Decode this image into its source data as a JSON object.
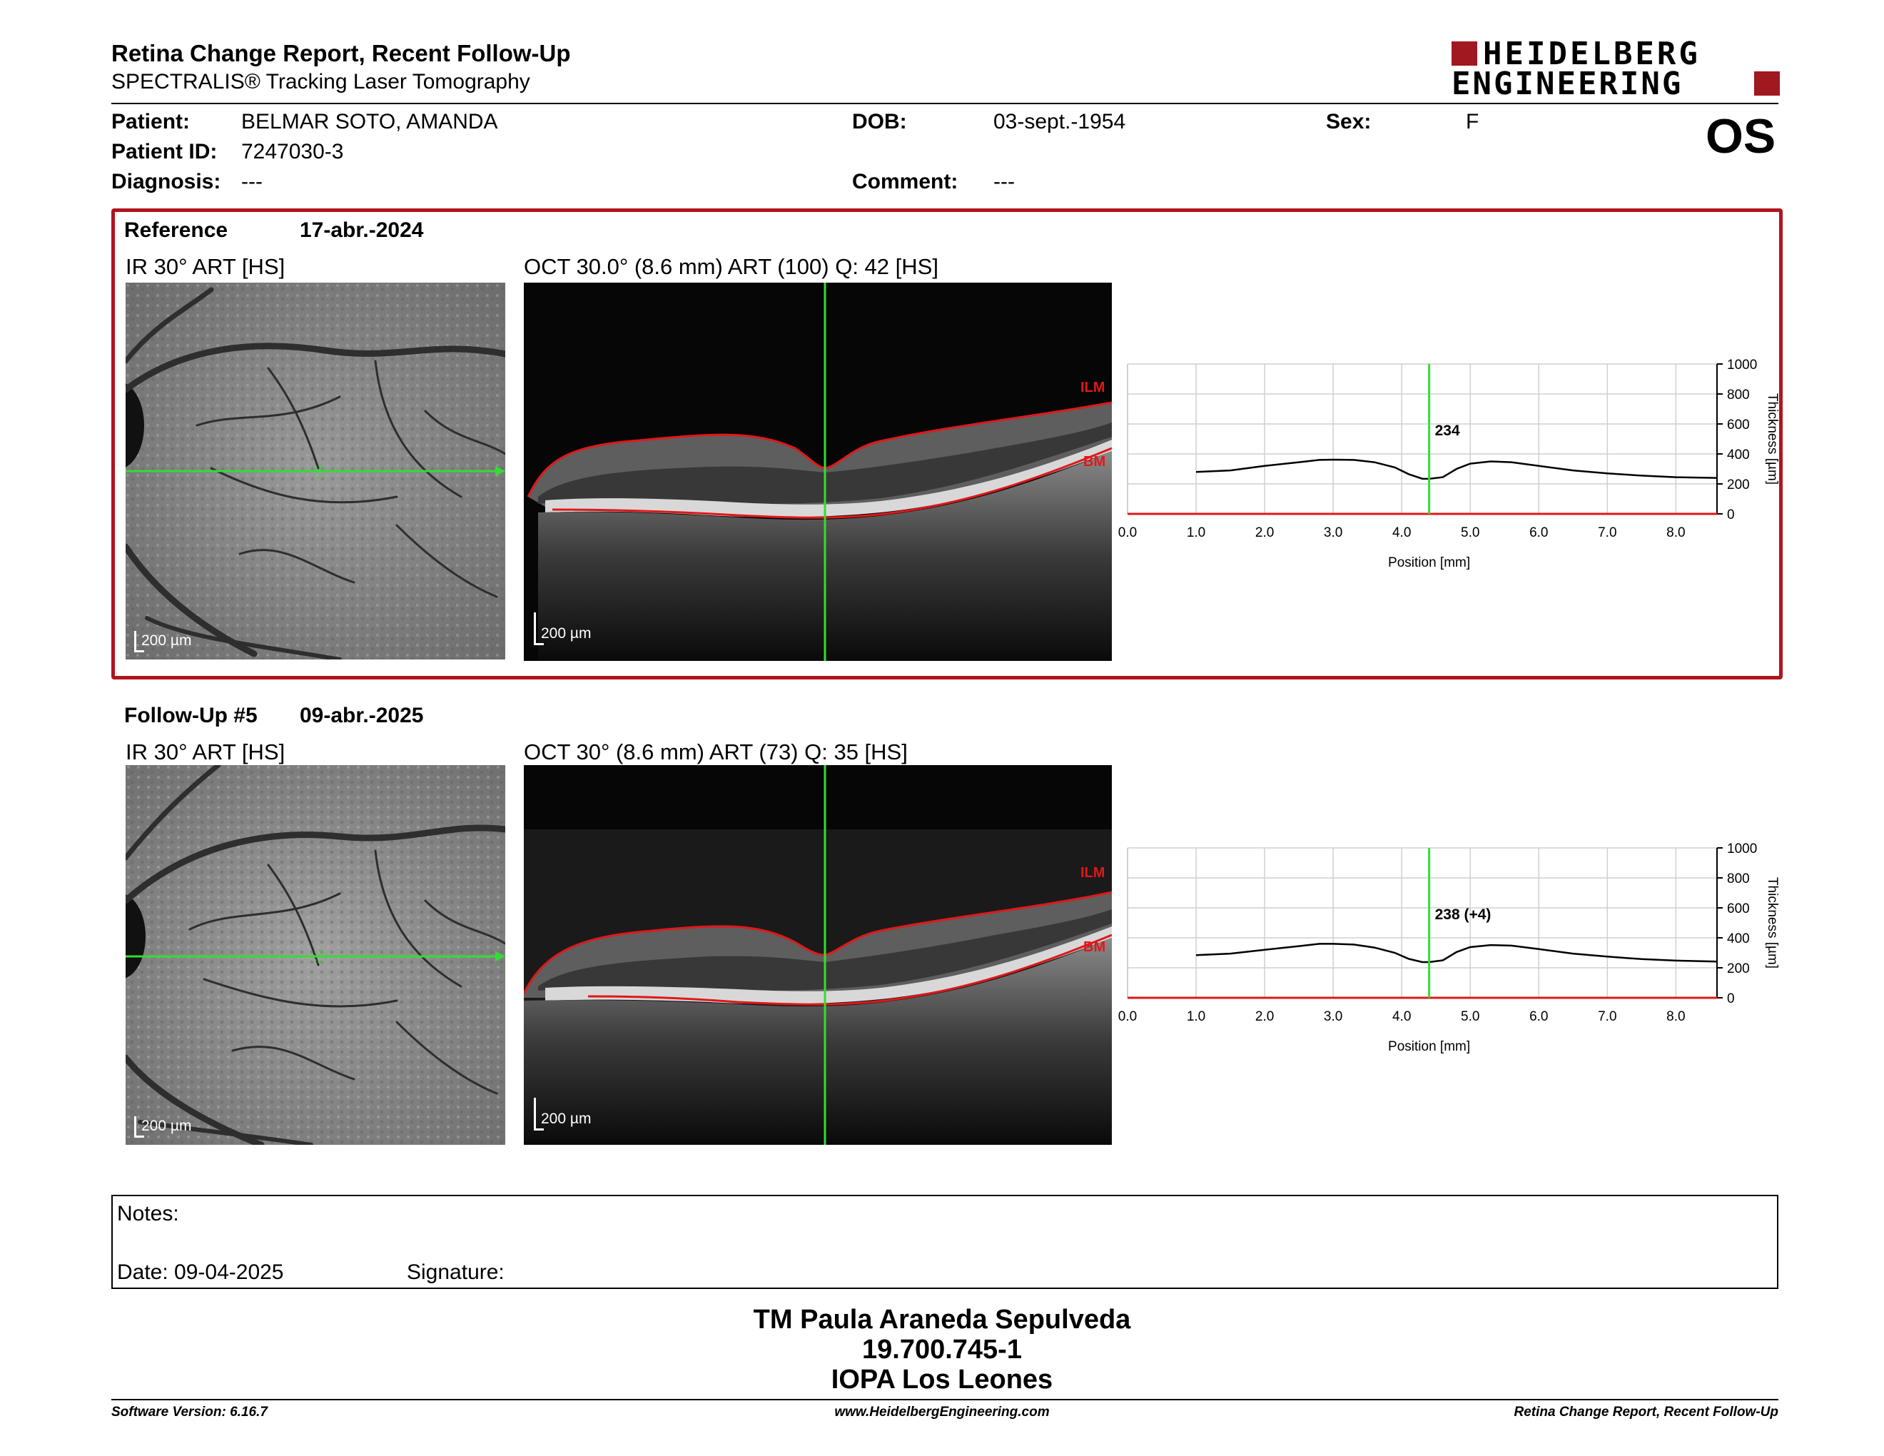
{
  "header": {
    "title": "Retina Change Report, Recent Follow-Up",
    "subtitle": "SPECTRALIS® Tracking Laser Tomography",
    "logo_line1": "HEIDELBERG",
    "logo_line2": "ENGINEERING",
    "eye": "OS"
  },
  "patient": {
    "patient_label": "Patient:",
    "patient_value": "BELMAR SOTO, AMANDA",
    "id_label": "Patient ID:",
    "id_value": "7247030-3",
    "diagnosis_label": "Diagnosis:",
    "diagnosis_value": "---",
    "dob_label": "DOB:",
    "dob_value": "03-sept.-1954",
    "comment_label": "Comment:",
    "comment_value": "---",
    "sex_label": "Sex:",
    "sex_value": "F"
  },
  "reference": {
    "label": "Reference",
    "date": "17-abr.-2024",
    "ir_title": "IR 30° ART [HS]",
    "oct_title": "OCT 30.0° (8.6 mm) ART (100) Q: 42 [HS]",
    "scale": "200 µm",
    "ilm": "ILM",
    "bm": "BM",
    "thickness_value": "234"
  },
  "followup": {
    "label": "Follow-Up #5",
    "date": "09-abr.-2025",
    "ir_title": "IR 30° ART [HS]",
    "oct_title": "OCT 30° (8.6 mm) ART (73) Q: 35 [HS]",
    "scale": "200 µm",
    "ilm": "ILM",
    "bm": "BM",
    "thickness_value": "238 (+4)"
  },
  "notes": {
    "notes_label": "Notes:",
    "date_label": "Date: 09-04-2025",
    "signature_label": "Signature:"
  },
  "signature_block": {
    "name": "TM Paula Araneda Sepulveda",
    "rut": "19.700.745-1",
    "institution": "IOPA Los Leones"
  },
  "footer": {
    "software": "Software Version: 6.16.7",
    "website": "www.HeidelbergEngineering.com",
    "report": "Retina Change Report, Recent Follow-Up"
  },
  "colors": {
    "accent": "#b0141c",
    "marker": "#33dd33",
    "segmentation": "#e01818"
  },
  "chart_data": [
    {
      "type": "line",
      "name": "reference-thickness-profile",
      "xlabel": "Position [mm]",
      "ylabel": "Thickness [µm]",
      "xlim": [
        0,
        8.6
      ],
      "ylim": [
        0,
        1000
      ],
      "xticks": [
        "0.0",
        "1.0",
        "2.0",
        "3.0",
        "4.0",
        "5.0",
        "6.0",
        "7.0",
        "8.0"
      ],
      "yticks": [
        "0",
        "200",
        "400",
        "600",
        "800",
        "1000"
      ],
      "marker_x": 4.4,
      "marker_label": "234",
      "x": [
        1.0,
        1.5,
        2.0,
        2.5,
        2.8,
        3.0,
        3.3,
        3.6,
        3.9,
        4.1,
        4.3,
        4.4,
        4.6,
        4.8,
        5.0,
        5.3,
        5.6,
        6.0,
        6.5,
        7.0,
        7.5,
        8.0,
        8.6
      ],
      "y": [
        280,
        290,
        320,
        345,
        360,
        362,
        360,
        345,
        310,
        265,
        235,
        234,
        245,
        300,
        335,
        350,
        345,
        320,
        290,
        270,
        255,
        245,
        240
      ]
    },
    {
      "type": "line",
      "name": "followup-thickness-profile",
      "xlabel": "Position [mm]",
      "ylabel": "Thickness [µm]",
      "xlim": [
        0,
        8.6
      ],
      "ylim": [
        0,
        1000
      ],
      "xticks": [
        "0.0",
        "1.0",
        "2.0",
        "3.0",
        "4.0",
        "5.0",
        "6.0",
        "7.0",
        "8.0"
      ],
      "yticks": [
        "0",
        "200",
        "400",
        "600",
        "800",
        "1000"
      ],
      "marker_x": 4.4,
      "marker_label": "238 (+4)",
      "x": [
        1.0,
        1.5,
        2.0,
        2.5,
        2.8,
        3.0,
        3.3,
        3.6,
        3.9,
        4.1,
        4.3,
        4.4,
        4.6,
        4.8,
        5.0,
        5.3,
        5.6,
        6.0,
        6.5,
        7.0,
        7.5,
        8.0,
        8.6
      ],
      "y": [
        285,
        295,
        320,
        345,
        360,
        360,
        355,
        335,
        300,
        260,
        238,
        238,
        250,
        305,
        338,
        352,
        348,
        325,
        295,
        275,
        258,
        248,
        242
      ]
    }
  ]
}
